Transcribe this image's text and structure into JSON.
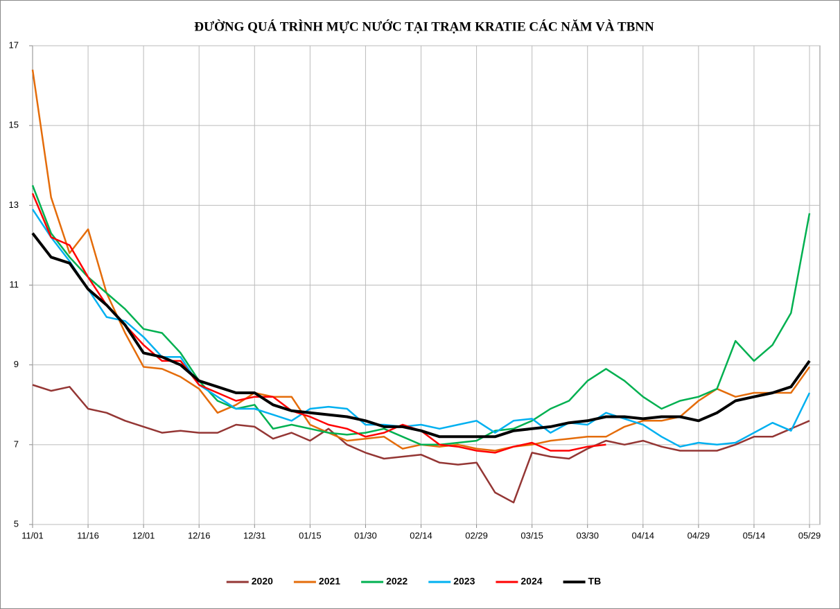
{
  "chart_data": {
    "type": "line",
    "title": "ĐƯỜNG QUÁ TRÌNH MỰC NƯỚC TẠI TRẠM KRATIE CÁC NĂM VÀ TBNN",
    "categories": [
      "11/01",
      null,
      null,
      "11/16",
      null,
      null,
      "12/01",
      null,
      null,
      "12/16",
      null,
      null,
      "12/31",
      null,
      null,
      "01/15",
      null,
      null,
      "01/30",
      null,
      null,
      "02/14",
      null,
      null,
      "02/29",
      null,
      null,
      "03/15",
      null,
      null,
      "03/30",
      null,
      null,
      "04/14",
      null,
      null,
      "04/29",
      null,
      null,
      "05/14",
      null,
      null,
      "05/29"
    ],
    "ylim": [
      5,
      17
    ],
    "yticks": [
      5,
      7,
      9,
      11,
      13,
      15,
      17
    ],
    "grid": true,
    "legend": "bottom",
    "series": [
      {
        "name": "2020",
        "color": "#943634",
        "values": [
          8.5,
          8.35,
          8.45,
          7.9,
          7.8,
          7.6,
          7.45,
          7.3,
          7.35,
          7.3,
          7.3,
          7.5,
          7.45,
          7.15,
          7.3,
          7.1,
          7.4,
          7.0,
          6.8,
          6.65,
          6.7,
          6.75,
          6.55,
          6.5,
          6.55,
          5.8,
          5.55,
          6.8,
          6.7,
          6.65,
          6.9,
          7.1,
          7.0,
          7.1,
          6.95,
          6.85,
          6.85,
          6.85,
          7.0,
          7.2,
          7.2,
          7.4,
          7.6
        ]
      },
      {
        "name": "2021",
        "color": "#e46c0a",
        "values": [
          16.4,
          13.2,
          11.8,
          12.4,
          10.8,
          9.8,
          8.95,
          8.9,
          8.7,
          8.4,
          7.8,
          8.0,
          8.3,
          8.2,
          8.2,
          7.5,
          7.3,
          7.1,
          7.15,
          7.2,
          6.9,
          7.0,
          6.95,
          7.0,
          6.9,
          6.85,
          6.95,
          7.0,
          7.1,
          7.15,
          7.2,
          7.2,
          7.45,
          7.6,
          7.6,
          7.7,
          8.1,
          8.4,
          8.2,
          8.3,
          8.3,
          8.3,
          8.95
        ]
      },
      {
        "name": "2022",
        "color": "#00b050",
        "values": [
          13.5,
          12.3,
          11.7,
          11.2,
          10.8,
          10.4,
          9.9,
          9.8,
          9.3,
          8.6,
          8.1,
          7.9,
          8.0,
          7.4,
          7.5,
          7.4,
          7.3,
          7.25,
          7.3,
          7.4,
          7.2,
          7.0,
          7.0,
          7.05,
          7.1,
          7.35,
          7.4,
          7.6,
          7.9,
          8.1,
          8.6,
          8.9,
          8.6,
          8.2,
          7.9,
          8.1,
          8.2,
          8.4,
          9.6,
          9.1,
          9.5,
          10.3,
          12.8
        ]
      },
      {
        "name": "2023",
        "color": "#00b0f0",
        "values": [
          12.9,
          12.2,
          11.6,
          10.9,
          10.2,
          10.1,
          9.7,
          9.2,
          9.2,
          8.5,
          8.2,
          7.9,
          7.9,
          7.75,
          7.6,
          7.9,
          7.95,
          7.9,
          7.5,
          7.5,
          7.45,
          7.5,
          7.4,
          7.5,
          7.6,
          7.3,
          7.6,
          7.65,
          7.3,
          7.55,
          7.5,
          7.8,
          7.65,
          7.5,
          7.2,
          6.95,
          7.05,
          7.0,
          7.05,
          7.3,
          7.55,
          7.35,
          8.3
        ]
      },
      {
        "name": "2024",
        "color": "#ff0000",
        "values": [
          13.3,
          12.2,
          12.0,
          11.2,
          10.5,
          10.0,
          9.5,
          9.1,
          9.1,
          8.5,
          8.3,
          8.1,
          8.2,
          8.2,
          7.85,
          7.7,
          7.5,
          7.4,
          7.2,
          7.3,
          7.5,
          7.35,
          7.0,
          6.95,
          6.85,
          6.8,
          6.95,
          7.05,
          6.85,
          6.85,
          6.95,
          7.0,
          null,
          null,
          null,
          null,
          null,
          null,
          null,
          null,
          null,
          null,
          null
        ]
      },
      {
        "name": "TB",
        "color": "#000000",
        "values": [
          12.3,
          11.7,
          11.55,
          10.9,
          10.5,
          10.0,
          9.3,
          9.2,
          9.0,
          8.6,
          8.45,
          8.3,
          8.3,
          8.0,
          7.85,
          7.8,
          7.75,
          7.7,
          7.6,
          7.45,
          7.45,
          7.35,
          7.2,
          7.2,
          7.2,
          7.2,
          7.35,
          7.4,
          7.45,
          7.55,
          7.6,
          7.7,
          7.7,
          7.65,
          7.7,
          7.7,
          7.6,
          7.8,
          8.1,
          8.2,
          8.3,
          8.45,
          9.1
        ]
      }
    ]
  }
}
